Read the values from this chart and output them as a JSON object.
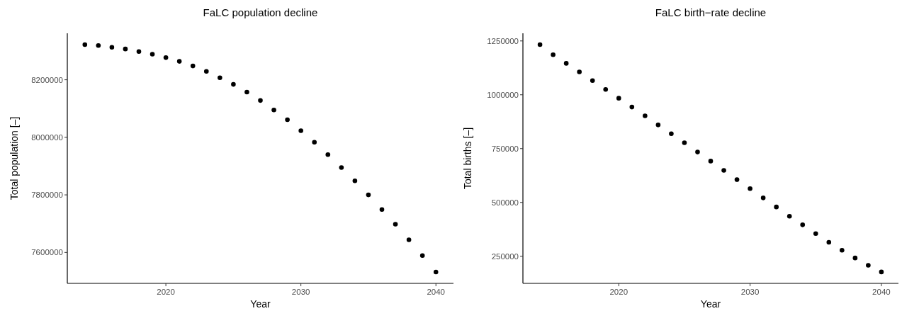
{
  "chart_data": [
    {
      "type": "scatter",
      "title": "FaLC population decline",
      "xlabel": "Year",
      "ylabel": "Total population [–]",
      "marker": "circle",
      "x": [
        2014,
        2015,
        2016,
        2017,
        2018,
        2019,
        2020,
        2021,
        2022,
        2023,
        2024,
        2025,
        2026,
        2027,
        2028,
        2029,
        2030,
        2031,
        2032,
        2033,
        2034,
        2035,
        2036,
        2037,
        2038,
        2039,
        2040
      ],
      "series": [
        {
          "color": "#000000",
          "values": [
            8322000,
            8319000,
            8313000,
            8307000,
            8298000,
            8289000,
            8277000,
            8264000,
            8248000,
            8229000,
            8207000,
            8184000,
            8157000,
            8128000,
            8095000,
            8061000,
            8023000,
            7983000,
            7940000,
            7895000,
            7849000,
            7800000,
            7749000,
            7698000,
            7644000,
            7589000,
            7532000
          ]
        }
      ],
      "xlim": [
        2012.7,
        2041.3
      ],
      "xticks": [
        2020,
        2030,
        2040
      ],
      "ylim": [
        7492500,
        8361500
      ],
      "yticks": [
        7600000,
        7800000,
        8000000,
        8200000
      ]
    },
    {
      "type": "scatter",
      "title": "FaLC birth−rate decline",
      "xlabel": "Year",
      "ylabel": "Total births [–]",
      "marker": "circle",
      "x": [
        2014,
        2015,
        2016,
        2017,
        2018,
        2019,
        2020,
        2021,
        2022,
        2023,
        2024,
        2025,
        2026,
        2027,
        2028,
        2029,
        2030,
        2031,
        2032,
        2033,
        2034,
        2035,
        2036,
        2037,
        2038,
        2039,
        2040
      ],
      "series": [
        {
          "color": "#000000",
          "values": [
            1233000,
            1186000,
            1146000,
            1106000,
            1066000,
            1025000,
            984000,
            943000,
            902000,
            860000,
            819000,
            777000,
            734000,
            692000,
            649000,
            606000,
            564000,
            521000,
            479000,
            436000,
            396000,
            355000,
            315000,
            278000,
            242000,
            208000,
            177000
          ]
        }
      ],
      "xlim": [
        2012.7,
        2041.3
      ],
      "xticks": [
        2020,
        2030,
        2040
      ],
      "ylim": [
        124100,
        1285500
      ],
      "yticks": [
        250000,
        500000,
        750000,
        1000000,
        1250000
      ]
    }
  ]
}
